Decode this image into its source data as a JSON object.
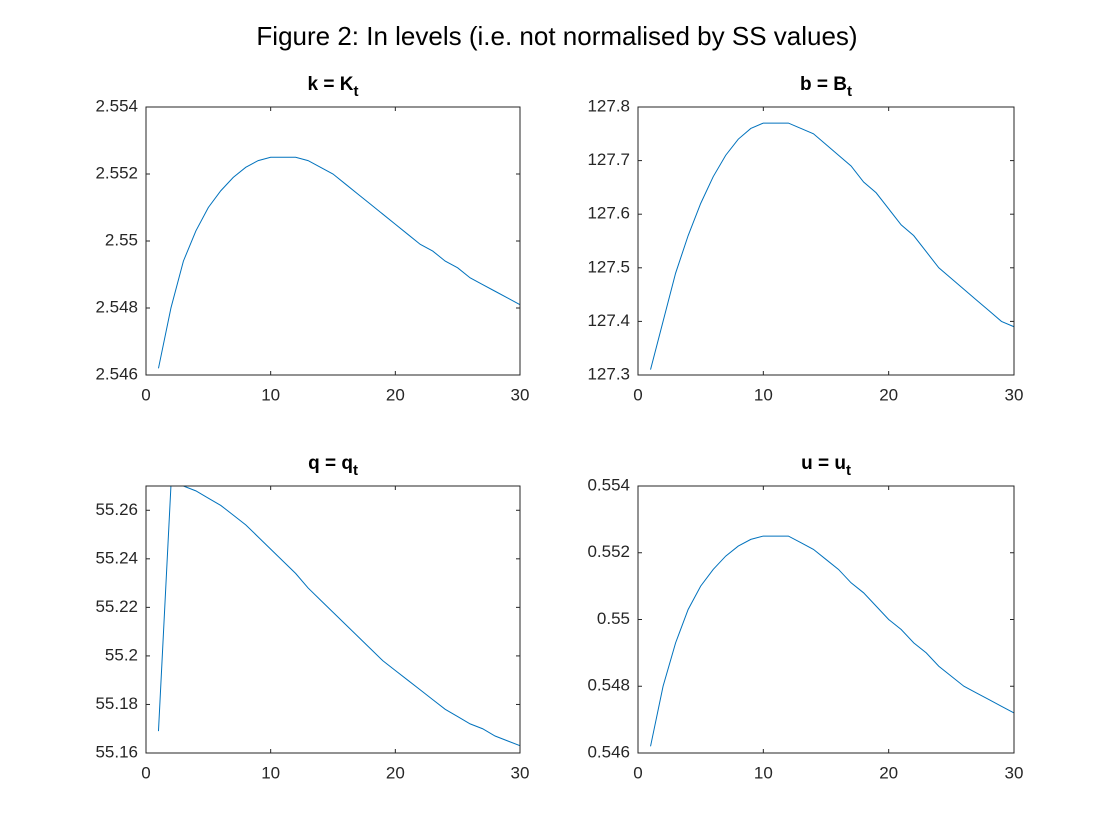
{
  "title": "Figure 2: In levels (i.e. not normalised by SS values)",
  "chart_data": [
    {
      "type": "line",
      "title": "k = K",
      "title_sub": "t",
      "x": [
        1,
        2,
        3,
        4,
        5,
        6,
        7,
        8,
        9,
        10,
        11,
        12,
        13,
        14,
        15,
        16,
        17,
        18,
        19,
        20,
        21,
        22,
        23,
        24,
        25,
        26,
        27,
        28,
        29,
        30
      ],
      "values": [
        2.5462,
        2.548,
        2.5494,
        2.5503,
        2.551,
        2.5515,
        2.5519,
        2.5522,
        2.5524,
        2.5525,
        2.5525,
        2.5525,
        2.5524,
        2.5522,
        2.552,
        2.5517,
        2.5514,
        2.5511,
        2.5508,
        2.5505,
        2.5502,
        2.5499,
        2.5497,
        2.5494,
        2.5492,
        2.5489,
        2.5487,
        2.5485,
        2.5483,
        2.5481
      ],
      "color": "#0072bd",
      "xlim": [
        0,
        30
      ],
      "xticks": [
        0,
        10,
        20,
        30
      ],
      "ylim": [
        2.546,
        2.554
      ],
      "yticks": [
        2.546,
        2.548,
        2.55,
        2.552,
        2.554
      ]
    },
    {
      "type": "line",
      "title": "b = B",
      "title_sub": "t",
      "x": [
        1,
        2,
        3,
        4,
        5,
        6,
        7,
        8,
        9,
        10,
        11,
        12,
        13,
        14,
        15,
        16,
        17,
        18,
        19,
        20,
        21,
        22,
        23,
        24,
        25,
        26,
        27,
        28,
        29,
        30
      ],
      "values": [
        127.31,
        127.4,
        127.49,
        127.56,
        127.62,
        127.67,
        127.71,
        127.74,
        127.76,
        127.77,
        127.77,
        127.77,
        127.76,
        127.75,
        127.73,
        127.71,
        127.69,
        127.66,
        127.64,
        127.61,
        127.58,
        127.56,
        127.53,
        127.5,
        127.48,
        127.46,
        127.44,
        127.42,
        127.4,
        127.39
      ],
      "color": "#0072bd",
      "xlim": [
        0,
        30
      ],
      "xticks": [
        0,
        10,
        20,
        30
      ],
      "ylim": [
        127.3,
        127.8
      ],
      "yticks": [
        127.3,
        127.4,
        127.5,
        127.6,
        127.7,
        127.8
      ]
    },
    {
      "type": "line",
      "title": "q = q",
      "title_sub": "t",
      "x": [
        1,
        2,
        3,
        4,
        5,
        6,
        7,
        8,
        9,
        10,
        11,
        12,
        13,
        14,
        15,
        16,
        17,
        18,
        19,
        20,
        21,
        22,
        23,
        24,
        25,
        26,
        27,
        28,
        29,
        30
      ],
      "values": [
        55.169,
        55.27,
        55.27,
        55.268,
        55.265,
        55.262,
        55.258,
        55.254,
        55.249,
        55.244,
        55.239,
        55.234,
        55.228,
        55.223,
        55.218,
        55.213,
        55.208,
        55.203,
        55.198,
        55.194,
        55.19,
        55.186,
        55.182,
        55.178,
        55.175,
        55.172,
        55.17,
        55.167,
        55.165,
        55.163
      ],
      "color": "#0072bd",
      "xlim": [
        0,
        30
      ],
      "xticks": [
        0,
        10,
        20,
        30
      ],
      "ylim": [
        55.16,
        55.27
      ],
      "yticks": [
        55.16,
        55.18,
        55.2,
        55.22,
        55.24,
        55.26
      ]
    },
    {
      "type": "line",
      "title": "u = u",
      "title_sub": "t",
      "x": [
        1,
        2,
        3,
        4,
        5,
        6,
        7,
        8,
        9,
        10,
        11,
        12,
        13,
        14,
        15,
        16,
        17,
        18,
        19,
        20,
        21,
        22,
        23,
        24,
        25,
        26,
        27,
        28,
        29,
        30
      ],
      "values": [
        0.5462,
        0.548,
        0.5493,
        0.5503,
        0.551,
        0.5515,
        0.5519,
        0.5522,
        0.5524,
        0.5525,
        0.5525,
        0.5525,
        0.5523,
        0.5521,
        0.5518,
        0.5515,
        0.5511,
        0.5508,
        0.5504,
        0.55,
        0.5497,
        0.5493,
        0.549,
        0.5486,
        0.5483,
        0.548,
        0.5478,
        0.5476,
        0.5474,
        0.5472
      ],
      "color": "#0072bd",
      "xlim": [
        0,
        30
      ],
      "xticks": [
        0,
        10,
        20,
        30
      ],
      "ylim": [
        0.546,
        0.554
      ],
      "yticks": [
        0.546,
        0.548,
        0.55,
        0.552,
        0.554
      ]
    }
  ]
}
